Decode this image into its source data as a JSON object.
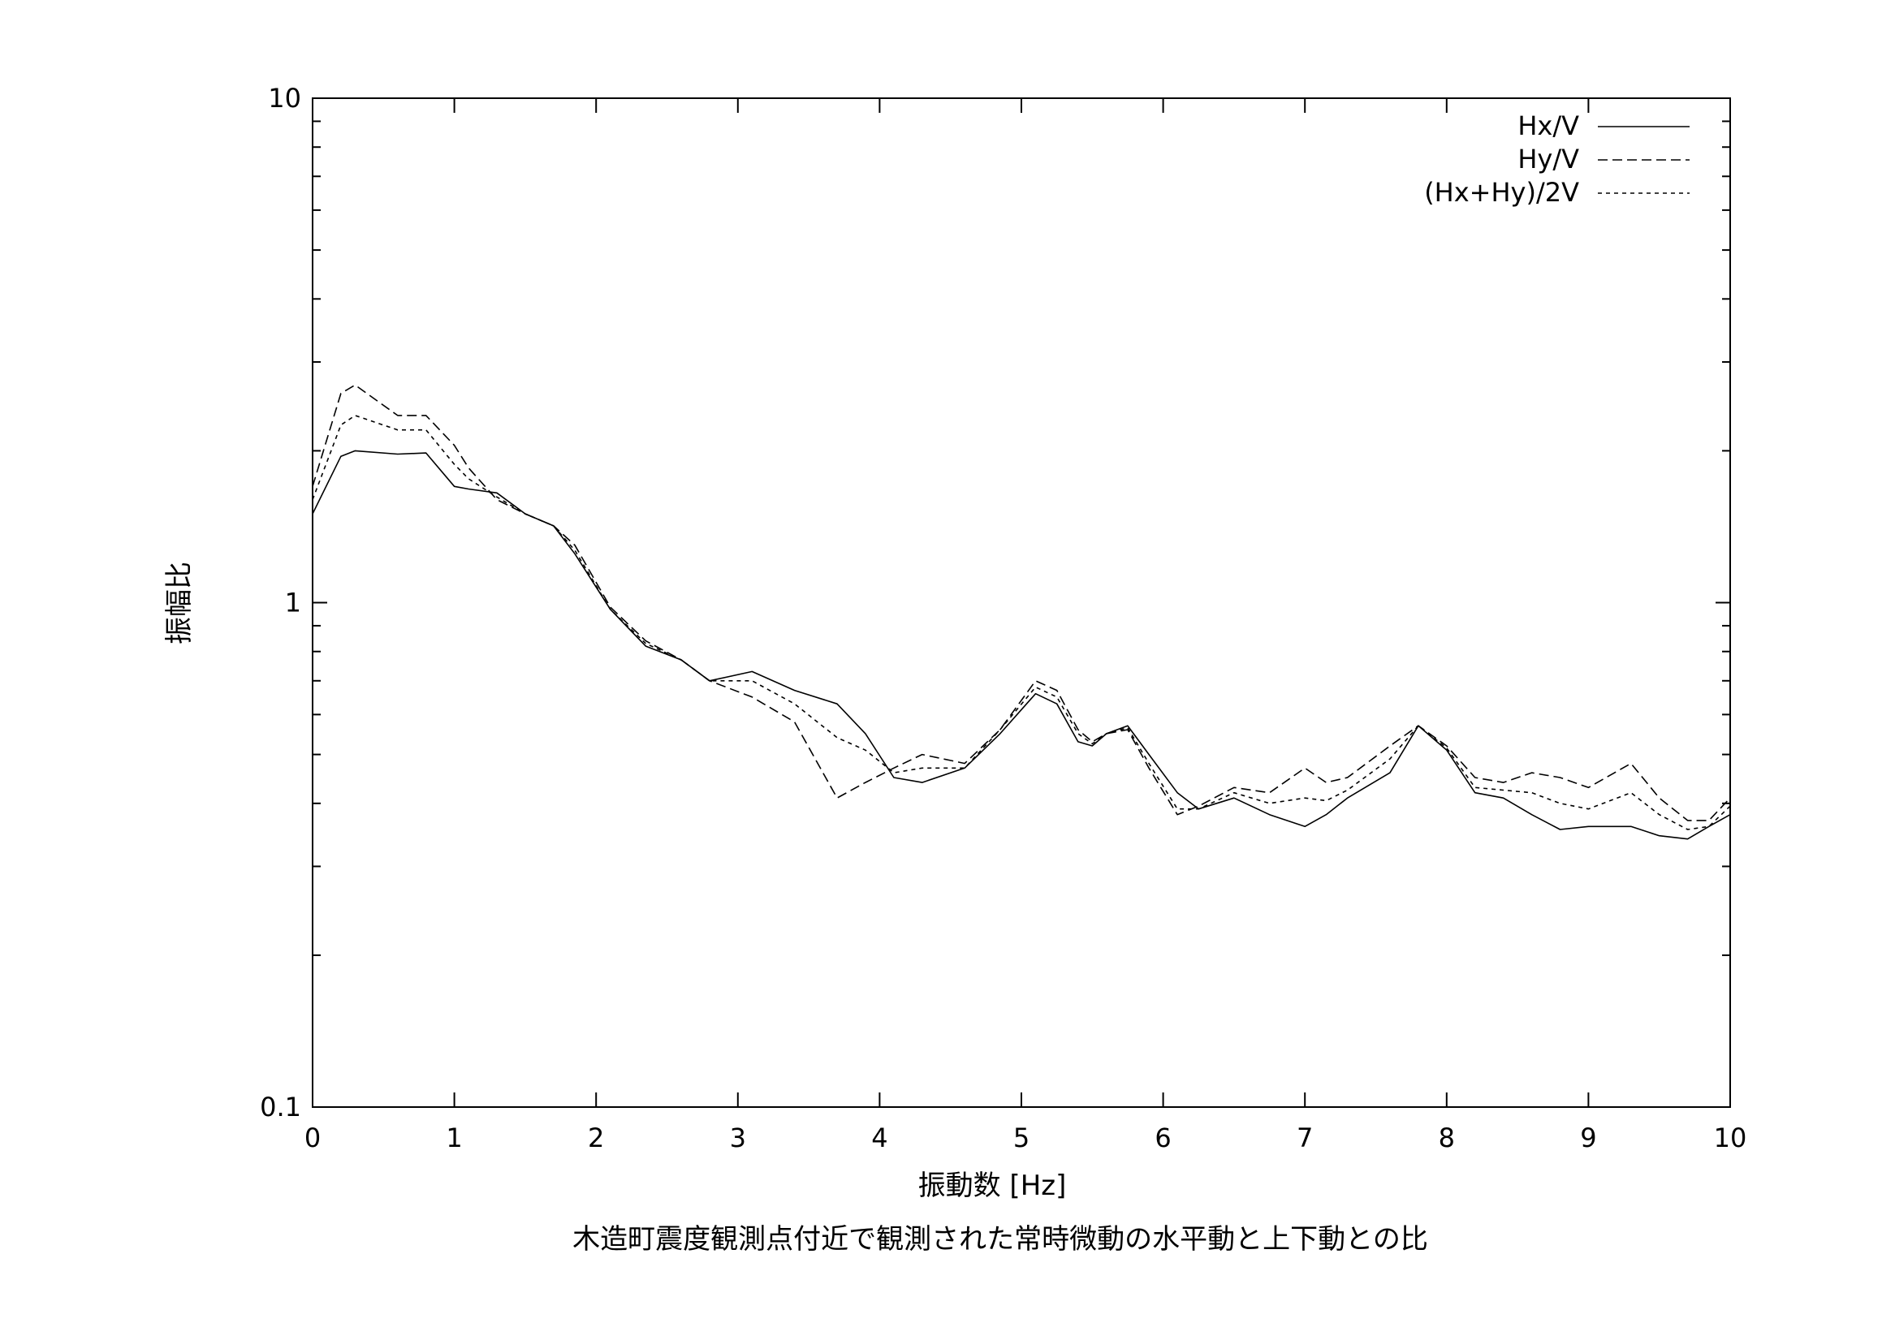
{
  "chart_data": {
    "type": "line",
    "title": "",
    "caption": "木造町震度観測点付近で観測された常時微動の水平動と上下動との比",
    "xlabel": "振動数 [Hz]",
    "ylabel": "振幅比",
    "xlim": [
      0,
      10
    ],
    "ylim": [
      0.1,
      10
    ],
    "yscale": "log",
    "grid": false,
    "legend_position": "top-right",
    "x_ticks": [
      "0",
      "1",
      "2",
      "3",
      "4",
      "5",
      "6",
      "7",
      "8",
      "9",
      "10"
    ],
    "y_ticks": [
      "0.1",
      "1",
      "10"
    ],
    "x": [
      0,
      0.2,
      0.3,
      0.6,
      0.8,
      1.0,
      1.1,
      1.3,
      1.5,
      1.7,
      1.85,
      2.1,
      2.35,
      2.6,
      2.8,
      3.1,
      3.4,
      3.7,
      3.9,
      4.1,
      4.3,
      4.6,
      4.85,
      5.1,
      5.25,
      5.4,
      5.5,
      5.6,
      5.75,
      5.9,
      6.1,
      6.25,
      6.5,
      6.75,
      7.0,
      7.15,
      7.3,
      7.6,
      7.8,
      8.0,
      8.2,
      8.4,
      8.6,
      8.8,
      9.0,
      9.3,
      9.5,
      9.7,
      9.85,
      10.0
    ],
    "series": [
      {
        "name": "Hx/V",
        "dash": "solid",
        "values": [
          1.5,
          1.95,
          2.0,
          1.97,
          1.98,
          1.7,
          1.68,
          1.65,
          1.5,
          1.42,
          1.25,
          0.97,
          0.82,
          0.77,
          0.7,
          0.73,
          0.67,
          0.63,
          0.55,
          0.45,
          0.44,
          0.47,
          0.55,
          0.66,
          0.63,
          0.53,
          0.52,
          0.55,
          0.57,
          0.5,
          0.42,
          0.39,
          0.41,
          0.38,
          0.36,
          0.38,
          0.41,
          0.46,
          0.57,
          0.51,
          0.42,
          0.41,
          0.38,
          0.355,
          0.36,
          0.36,
          0.345,
          0.34,
          0.36,
          0.38
        ]
      },
      {
        "name": "Hy/V",
        "dash": "dashed",
        "values": [
          1.7,
          2.6,
          2.7,
          2.35,
          2.35,
          2.05,
          1.85,
          1.6,
          1.5,
          1.42,
          1.3,
          0.98,
          0.84,
          0.77,
          0.7,
          0.65,
          0.58,
          0.41,
          0.44,
          0.47,
          0.5,
          0.48,
          0.56,
          0.7,
          0.67,
          0.56,
          0.53,
          0.55,
          0.56,
          0.47,
          0.38,
          0.395,
          0.43,
          0.42,
          0.47,
          0.44,
          0.45,
          0.52,
          0.57,
          0.52,
          0.45,
          0.44,
          0.46,
          0.45,
          0.43,
          0.48,
          0.41,
          0.37,
          0.37,
          0.41
        ]
      },
      {
        "name": "(Hx+Hy)/2V",
        "dash": "dotted",
        "values": [
          1.6,
          2.25,
          2.35,
          2.2,
          2.2,
          1.88,
          1.76,
          1.62,
          1.5,
          1.42,
          1.27,
          0.97,
          0.83,
          0.77,
          0.7,
          0.7,
          0.63,
          0.54,
          0.51,
          0.46,
          0.47,
          0.47,
          0.56,
          0.68,
          0.65,
          0.55,
          0.525,
          0.55,
          0.565,
          0.48,
          0.39,
          0.39,
          0.42,
          0.4,
          0.41,
          0.405,
          0.425,
          0.49,
          0.57,
          0.515,
          0.43,
          0.425,
          0.42,
          0.4,
          0.39,
          0.42,
          0.38,
          0.355,
          0.36,
          0.395
        ]
      }
    ]
  }
}
